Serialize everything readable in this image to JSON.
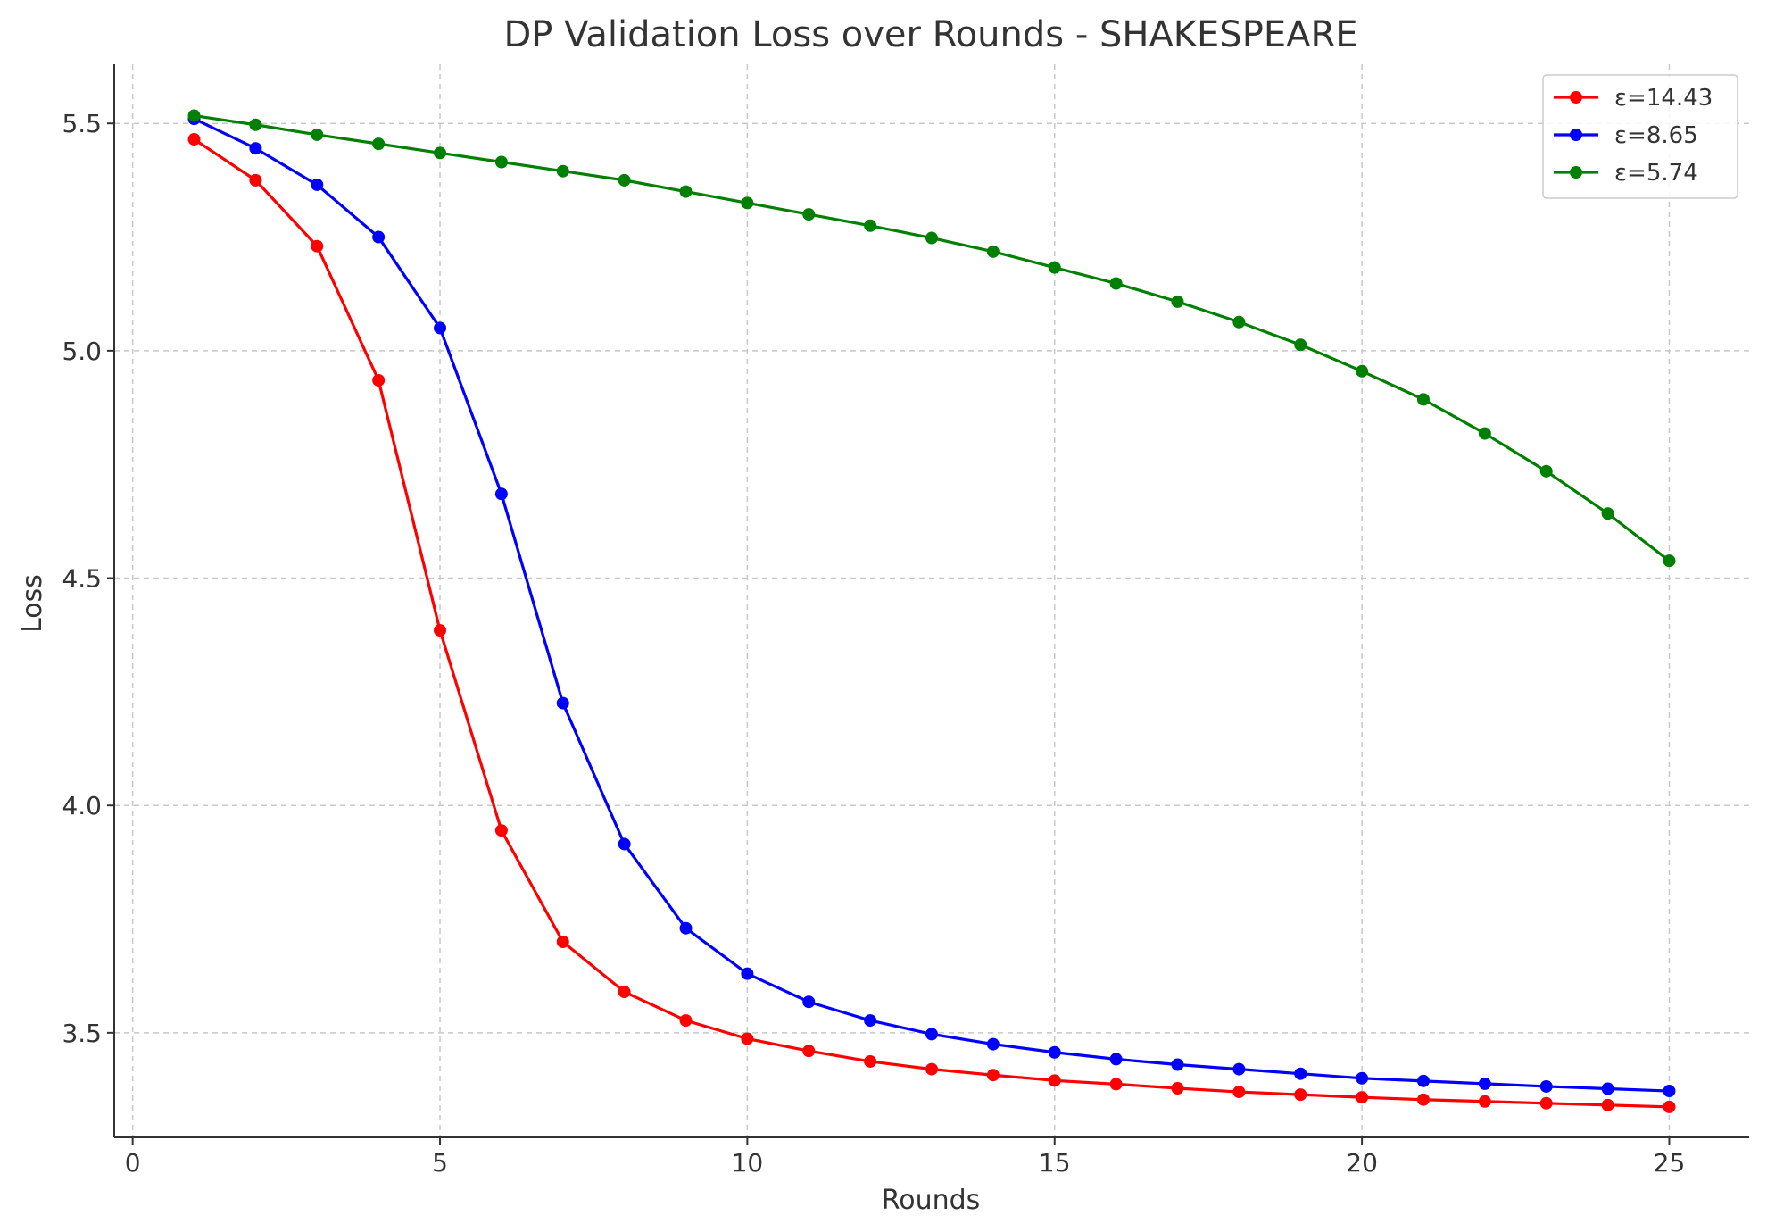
{
  "chart_data": {
    "type": "line",
    "title": "DP Validation Loss over Rounds - SHAKESPEARE",
    "xlabel": "Rounds",
    "ylabel": "Loss",
    "xlim": [
      -0.3,
      26.3
    ],
    "ylim": [
      3.27,
      5.63
    ],
    "xticks": [
      0,
      5,
      10,
      15,
      20,
      25
    ],
    "yticks": [
      3.5,
      4.0,
      4.5,
      5.0,
      5.5
    ],
    "xtick_labels": [
      "0",
      "5",
      "10",
      "15",
      "20",
      "25"
    ],
    "ytick_labels": [
      "3.5",
      "4.0",
      "4.5",
      "5.0",
      "5.5"
    ],
    "grid": true,
    "legend_position": "top-right",
    "x": [
      1,
      2,
      3,
      4,
      5,
      6,
      7,
      8,
      9,
      10,
      11,
      12,
      13,
      14,
      15,
      16,
      17,
      18,
      19,
      20,
      21,
      22,
      23,
      24,
      25
    ],
    "series": [
      {
        "name": "ε=14.43",
        "color": "#ff0000",
        "values": [
          5.465,
          5.375,
          5.23,
          4.935,
          4.385,
          3.945,
          3.7,
          3.59,
          3.527,
          3.487,
          3.46,
          3.437,
          3.42,
          3.407,
          3.395,
          3.387,
          3.378,
          3.37,
          3.364,
          3.358,
          3.353,
          3.349,
          3.345,
          3.341,
          3.337
        ]
      },
      {
        "name": "ε=8.65",
        "color": "#0000ff",
        "values": [
          5.51,
          5.445,
          5.365,
          5.25,
          5.05,
          4.685,
          4.225,
          3.915,
          3.73,
          3.63,
          3.568,
          3.527,
          3.497,
          3.475,
          3.457,
          3.442,
          3.43,
          3.42,
          3.41,
          3.4,
          3.394,
          3.388,
          3.382,
          3.377,
          3.372
        ]
      },
      {
        "name": "ε=5.74",
        "color": "#008000",
        "values": [
          5.517,
          5.497,
          5.475,
          5.455,
          5.435,
          5.415,
          5.395,
          5.375,
          5.35,
          5.325,
          5.3,
          5.275,
          5.248,
          5.218,
          5.183,
          5.148,
          5.108,
          5.063,
          5.013,
          4.955,
          4.893,
          4.818,
          4.735,
          4.642,
          4.538
        ]
      }
    ]
  }
}
